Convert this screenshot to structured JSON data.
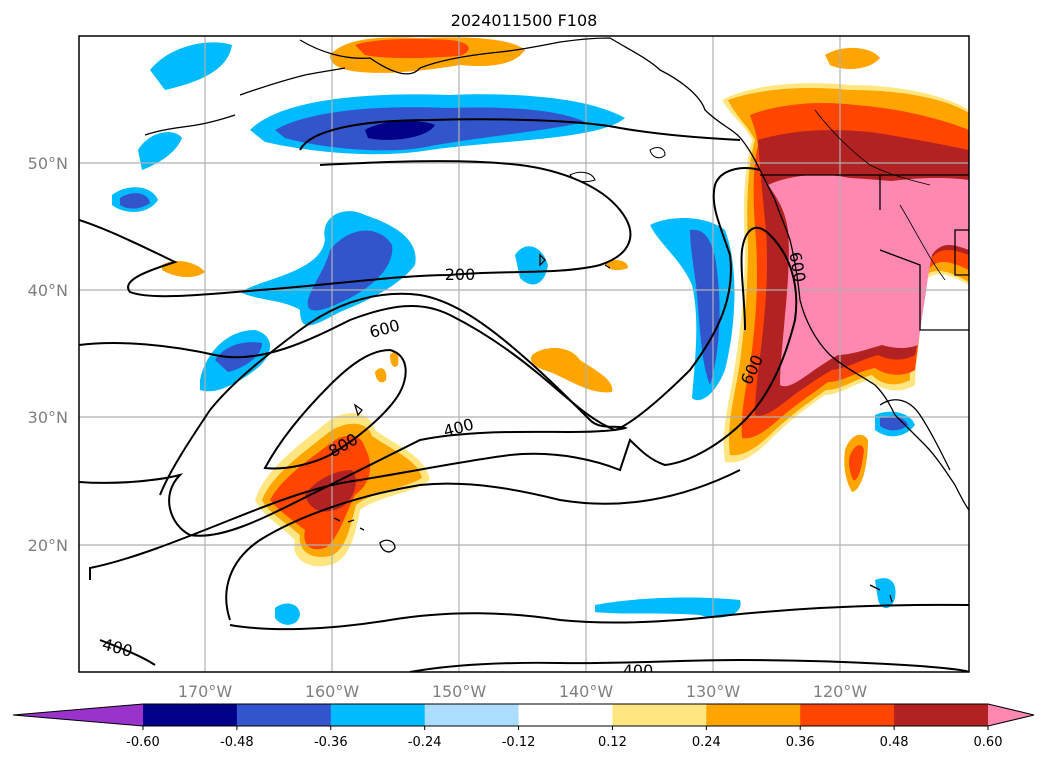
{
  "title": "2024011500 F108",
  "map": {
    "lat_labels": [
      "50°N",
      "40°N",
      "30°N",
      "20°N"
    ],
    "lon_labels": [
      "170°W",
      "160°W",
      "150°W",
      "140°W",
      "130°W",
      "120°W"
    ],
    "contour_labels": [
      "200",
      "600",
      "400",
      "800",
      "600",
      "400",
      "400",
      "600"
    ]
  },
  "colorbar": {
    "ticks": [
      "-0.60",
      "-0.48",
      "-0.36",
      "-0.24",
      "-0.12",
      "0.12",
      "0.24",
      "0.36",
      "0.48",
      "0.60"
    ],
    "colors": [
      "#9933cc",
      "#000088",
      "#3355cc",
      "#00bbff",
      "#aaddff",
      "#ffffff",
      "#ffe680",
      "#ffa500",
      "#ff4500",
      "#b22222",
      "#ff88b0"
    ]
  }
}
